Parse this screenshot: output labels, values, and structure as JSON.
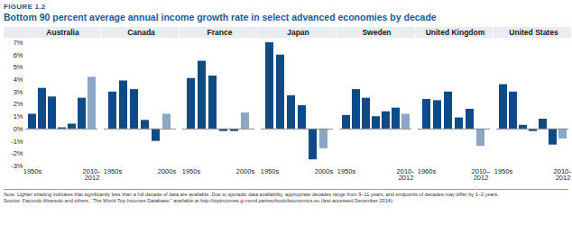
{
  "figure_label": "FIGURE 1.2",
  "title": "Bottom 90 percent average annual income growth rate in select advanced economies by decade",
  "note": "Note: Lighter shading indicates that significantly less than a full decade of data are available. Due to sporadic data availability, appropriate decades range from 9–11 years, and endpoints of decades may differ by 1–2 years.",
  "source": "Source: Facundo Alvaredo and others, “The World Top Incomes Database,” available at http://topincomes.g-mond.parisschoolofeconomics.eu (last accessed December 2014).",
  "chart_data": [
    {
      "type": "bar",
      "title": "Australia",
      "categories": [
        "1950s",
        null,
        null,
        null,
        null,
        null,
        "2010–2012"
      ],
      "values": [
        1.2,
        3.3,
        2.6,
        0.1,
        0.4,
        2.5,
        4.2
      ],
      "colors": [
        "#0d4a86",
        "#0d4a86",
        "#0d4a86",
        "#0d4a86",
        "#0d4a86",
        "#0d4a86",
        "#8ea6c6"
      ],
      "ylim": [
        -3,
        7
      ],
      "yticks": [
        {
          "value": -3,
          "label": "-3%"
        },
        {
          "value": -2,
          "label": "-2%"
        },
        {
          "value": -1,
          "label": "-1%"
        },
        {
          "value": 0,
          "label": "0%"
        },
        {
          "value": 1,
          "label": "1%"
        },
        {
          "value": 2,
          "label": "2%"
        },
        {
          "value": 3,
          "label": "3%"
        },
        {
          "value": 4,
          "label": "4%"
        },
        {
          "value": 5,
          "label": "5%"
        },
        {
          "value": 6,
          "label": "6%"
        },
        {
          "value": 7,
          "label": "7%"
        }
      ],
      "grid": false
    },
    {
      "type": "bar",
      "title": "Canada",
      "categories": [
        "1950s",
        null,
        null,
        null,
        null,
        "2000s"
      ],
      "values": [
        3.0,
        3.9,
        3.2,
        0.7,
        -1.0,
        1.2
      ],
      "colors": [
        "#0d4a86",
        "#0d4a86",
        "#0d4a86",
        "#0d4a86",
        "#0d4a86",
        "#8ea6c6"
      ],
      "ylim": [
        -3,
        7
      ],
      "yticks": [
        {
          "value": -3,
          "label": "-3%"
        },
        {
          "value": -2,
          "label": "-2%"
        },
        {
          "value": -1,
          "label": "-1%"
        },
        {
          "value": 0,
          "label": "0%"
        },
        {
          "value": 1,
          "label": "1%"
        },
        {
          "value": 2,
          "label": "2%"
        },
        {
          "value": 3,
          "label": "3%"
        },
        {
          "value": 4,
          "label": "4%"
        },
        {
          "value": 5,
          "label": "5%"
        },
        {
          "value": 6,
          "label": "6%"
        },
        {
          "value": 7,
          "label": "7%"
        }
      ],
      "grid": false,
      "tick_labels": "x"
    },
    {
      "type": "bar",
      "title": "France",
      "categories": [
        "1950s",
        null,
        null,
        null,
        null,
        "2000s"
      ],
      "values": [
        4.1,
        5.5,
        4.3,
        -0.2,
        -0.2,
        1.3
      ],
      "colors": [
        "#0d4a86",
        "#0d4a86",
        "#0d4a86",
        "#0d4a86",
        "#0d4a86",
        "#8ea6c6"
      ],
      "ylim": [
        -3,
        7
      ],
      "yticks": [
        {
          "value": -3,
          "label": "-3%"
        },
        {
          "value": -2,
          "label": "-2%"
        },
        {
          "value": -1,
          "label": "-1%"
        },
        {
          "value": 0,
          "label": "0%"
        },
        {
          "value": 1,
          "label": "1%"
        },
        {
          "value": 2,
          "label": "2%"
        },
        {
          "value": 3,
          "label": "3%"
        },
        {
          "value": 4,
          "label": "4%"
        },
        {
          "value": 5,
          "label": "5%"
        },
        {
          "value": 6,
          "label": "6%"
        },
        {
          "value": 7,
          "label": "7%"
        }
      ],
      "grid": false,
      "tick_labels": "x"
    },
    {
      "type": "bar",
      "title": "Japan",
      "categories": [
        "1950s",
        null,
        null,
        null,
        null,
        "2000s"
      ],
      "values": [
        7.0,
        6.0,
        2.7,
        1.9,
        -2.5,
        -1.6
      ],
      "colors": [
        "#0d4a86",
        "#0d4a86",
        "#0d4a86",
        "#0d4a86",
        "#0d4a86",
        "#8ea6c6"
      ],
      "ylim": [
        -3,
        7
      ],
      "yticks": [
        {
          "value": -3,
          "label": "-3%"
        },
        {
          "value": -2,
          "label": "-2%"
        },
        {
          "value": -1,
          "label": "-1%"
        },
        {
          "value": 0,
          "label": "0%"
        },
        {
          "value": 1,
          "label": "1%"
        },
        {
          "value": 2,
          "label": "2%"
        },
        {
          "value": 3,
          "label": "3%"
        },
        {
          "value": 4,
          "label": "4%"
        },
        {
          "value": 5,
          "label": "5%"
        },
        {
          "value": 6,
          "label": "6%"
        },
        {
          "value": 7,
          "label": "7%"
        }
      ],
      "grid": false,
      "tick_labels": "x"
    },
    {
      "type": "bar",
      "title": "Sweden",
      "categories": [
        "1950s",
        null,
        null,
        null,
        null,
        null,
        "2010–2012"
      ],
      "values": [
        1.1,
        3.2,
        2.5,
        1.0,
        1.4,
        1.7,
        1.2
      ],
      "colors": [
        "#0d4a86",
        "#0d4a86",
        "#0d4a86",
        "#0d4a86",
        "#0d4a86",
        "#0d4a86",
        "#8ea6c6"
      ],
      "ylim": [
        -3,
        7
      ],
      "yticks": [
        {
          "value": -3,
          "label": "-3%"
        },
        {
          "value": -2,
          "label": "-2%"
        },
        {
          "value": -1,
          "label": "-1%"
        },
        {
          "value": 0,
          "label": "0%"
        },
        {
          "value": 1,
          "label": "1%"
        },
        {
          "value": 2,
          "label": "2%"
        },
        {
          "value": 3,
          "label": "3%"
        },
        {
          "value": 4,
          "label": "4%"
        },
        {
          "value": 5,
          "label": "5%"
        },
        {
          "value": 6,
          "label": "6%"
        },
        {
          "value": 7,
          "label": "7%"
        }
      ],
      "grid": false,
      "tick_labels": "x"
    },
    {
      "type": "bar",
      "title": "United Kingdom",
      "categories": [
        "1960s",
        null,
        null,
        null,
        null,
        "2010–2012"
      ],
      "values": [
        2.4,
        2.3,
        3.0,
        0.9,
        1.6,
        -1.4
      ],
      "colors": [
        "#0d4a86",
        "#0d4a86",
        "#0d4a86",
        "#0d4a86",
        "#0d4a86",
        "#8ea6c6"
      ],
      "ylim": [
        -3,
        7
      ],
      "yticks": [
        {
          "value": -3,
          "label": "-3%"
        },
        {
          "value": -2,
          "label": "-2%"
        },
        {
          "value": -1,
          "label": "-1%"
        },
        {
          "value": 0,
          "label": "0%"
        },
        {
          "value": 1,
          "label": "1%"
        },
        {
          "value": 2,
          "label": "2%"
        },
        {
          "value": 3,
          "label": "3%"
        },
        {
          "value": 4,
          "label": "4%"
        },
        {
          "value": 5,
          "label": "5%"
        },
        {
          "value": 6,
          "label": "6%"
        },
        {
          "value": 7,
          "label": "7%"
        }
      ],
      "grid": false,
      "tick_labels": "x"
    },
    {
      "type": "bar",
      "title": "United States",
      "categories": [
        "1950s",
        null,
        null,
        null,
        null,
        null,
        "2010–2012"
      ],
      "values": [
        3.6,
        3.0,
        0.3,
        -0.2,
        0.8,
        -1.3,
        -0.8
      ],
      "colors": [
        "#0d4a86",
        "#0d4a86",
        "#0d4a86",
        "#0d4a86",
        "#0d4a86",
        "#0d4a86",
        "#8ea6c6"
      ],
      "ylim": [
        -3,
        7
      ],
      "yticks": [
        {
          "value": -3,
          "label": "-3%"
        },
        {
          "value": -2,
          "label": "-2%"
        },
        {
          "value": -1,
          "label": "-1%"
        },
        {
          "value": 0,
          "label": "0%"
        },
        {
          "value": 1,
          "label": "1%"
        },
        {
          "value": 2,
          "label": "2%"
        },
        {
          "value": 3,
          "label": "3%"
        },
        {
          "value": 4,
          "label": "4%"
        },
        {
          "value": 5,
          "label": "5%"
        },
        {
          "value": 6,
          "label": "6%"
        },
        {
          "value": 7,
          "label": "7%"
        }
      ],
      "grid": false,
      "tick_labels": "x"
    }
  ]
}
